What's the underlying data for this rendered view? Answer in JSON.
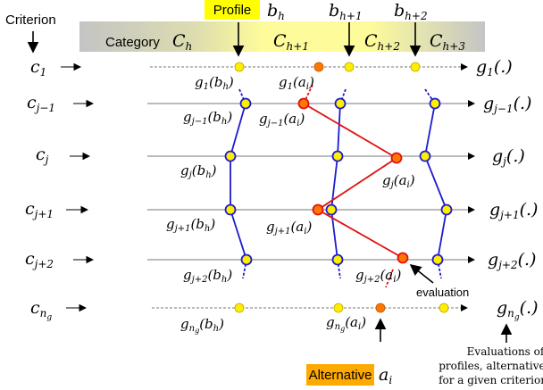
{
  "header": {
    "criterion_label": "Criterion",
    "category_label": "Category",
    "profile_label": "Profile",
    "alternative_label": "Alternative",
    "categories": [
      "C",
      "C",
      "C",
      "C"
    ],
    "category_subs": [
      "h",
      "h+1",
      "h+2",
      "h+3"
    ],
    "profiles": [
      "b",
      "b",
      "b"
    ],
    "profile_subs": [
      "h",
      "h+1",
      "h+2"
    ],
    "alternative_symbol": "a",
    "alternative_sub": "i"
  },
  "criteria": [
    {
      "name": "c",
      "sub": "1",
      "fn_sub": "1"
    },
    {
      "name": "c",
      "sub": "j−1",
      "fn_sub": "j−1"
    },
    {
      "name": "c",
      "sub": "j",
      "fn_sub": "j"
    },
    {
      "name": "c",
      "sub": "j+1",
      "fn_sub": "j+1"
    },
    {
      "name": "c",
      "sub": "j+2",
      "fn_sub": "j+2"
    },
    {
      "name": "c",
      "sub": "n",
      "sub2": "g",
      "fn_sub": "n",
      "fn_sub2": "g"
    }
  ],
  "point_labels": {
    "g1_bh": {
      "fn": "g",
      "sub": "1",
      "arg": "(b",
      "argsub": "h",
      "close": ")"
    },
    "g1_ai": {
      "fn": "g",
      "sub": "1",
      "arg": "(a",
      "argsub": "i",
      "close": ")"
    },
    "gjm1_bh": {
      "fn": "g",
      "sub": "j−1",
      "arg": "(b",
      "argsub": "h",
      "close": ")"
    },
    "gjm1_ai": {
      "fn": "g",
      "sub": "j−1",
      "arg": "(a",
      "argsub": "i",
      "close": ")"
    },
    "gj_bh": {
      "fn": "g",
      "sub": "j",
      "arg": "(b",
      "argsub": "h",
      "close": ")"
    },
    "gj_ai": {
      "fn": "g",
      "sub": "j",
      "arg": "(a",
      "argsub": "i",
      "close": ")"
    },
    "gjp1_bh": {
      "fn": "g",
      "sub": "j+1",
      "arg": "(b",
      "argsub": "h",
      "close": ")"
    },
    "gjp1_ai": {
      "fn": "g",
      "sub": "j+1",
      "arg": "(a",
      "argsub": "i",
      "close": ")"
    },
    "gjp2_bh": {
      "fn": "g",
      "sub": "j+2",
      "arg": "(b",
      "argsub": "h",
      "close": ")"
    },
    "gjp2_ai": {
      "fn": "g",
      "sub": "j+2",
      "arg": "(a",
      "argsub": "i",
      "close": ")"
    },
    "gng_bh": {
      "fn": "g",
      "sub": "n",
      "sub2": "g",
      "arg": "(b",
      "argsub": "h",
      "close": ")"
    },
    "gng_ai": {
      "fn": "g",
      "sub": "n",
      "sub2": "g",
      "arg": "(a",
      "argsub": "i",
      "close": ")"
    }
  },
  "annotations": {
    "evaluation": "evaluation",
    "note_line1": "Evaluations of",
    "note_line2": "profiles, alternatives",
    "note_line3": "for a given criterion"
  },
  "colors": {
    "band_gray": "#c8c8c8",
    "band_yellow": "#fdfb9a",
    "profile_box": "#ffff00",
    "alternative_box": "#ffaa00",
    "blue": "#1c1cd0",
    "red": "#e01010",
    "yellow_dot": "#ffee00",
    "orange_dot": "#ff7700"
  }
}
